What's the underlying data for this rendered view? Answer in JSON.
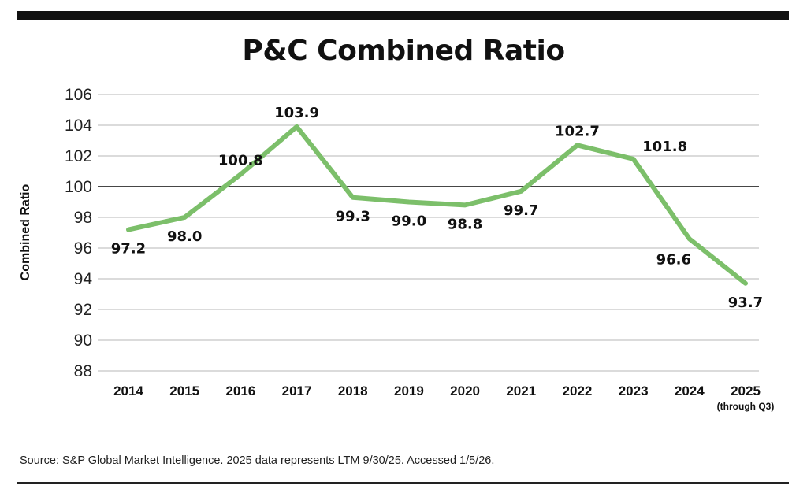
{
  "colors": {
    "line": "#7cbf6a",
    "grid": "#cfcfcf",
    "reference": "#111111",
    "bar": "#111111"
  },
  "chart_data": {
    "type": "line",
    "title": "P&C Combined Ratio",
    "ylabel": "Combined Ratio",
    "xlabel": "",
    "ylim": [
      88,
      106
    ],
    "yticks": [
      "88",
      "90",
      "92",
      "94",
      "96",
      "98",
      "100",
      "102",
      "104",
      "106"
    ],
    "reference_line": 100,
    "grid": true,
    "categories": [
      "2014",
      "2015",
      "2016",
      "2017",
      "2018",
      "2019",
      "2020",
      "2021",
      "2022",
      "2023",
      "2024",
      "2025"
    ],
    "category_note": {
      "index": 11,
      "text": "(through Q3)"
    },
    "series": [
      {
        "name": "Combined Ratio",
        "values": [
          97.2,
          98.0,
          100.8,
          103.9,
          99.3,
          99.0,
          98.8,
          99.7,
          102.7,
          101.8,
          96.6,
          93.7
        ],
        "labels": [
          "97.2",
          "98.0",
          "100.8",
          "103.9",
          "99.3",
          "99.0",
          "98.8",
          "99.7",
          "102.7",
          "101.8",
          "96.6",
          "93.7"
        ]
      }
    ]
  },
  "footer": {
    "source": "Source: S&P Global Market Intelligence. 2025 data represents LTM 9/30/25. Accessed 1/5/26."
  }
}
